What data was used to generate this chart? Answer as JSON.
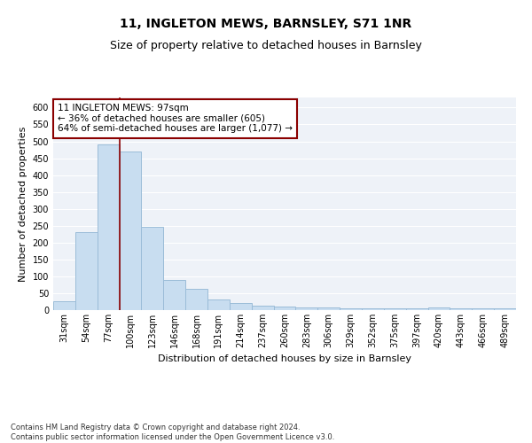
{
  "title": "11, INGLETON MEWS, BARNSLEY, S71 1NR",
  "subtitle": "Size of property relative to detached houses in Barnsley",
  "xlabel": "Distribution of detached houses by size in Barnsley",
  "ylabel": "Number of detached properties",
  "categories": [
    "31sqm",
    "54sqm",
    "77sqm",
    "100sqm",
    "123sqm",
    "146sqm",
    "168sqm",
    "191sqm",
    "214sqm",
    "237sqm",
    "260sqm",
    "283sqm",
    "306sqm",
    "329sqm",
    "352sqm",
    "375sqm",
    "397sqm",
    "420sqm",
    "443sqm",
    "466sqm",
    "489sqm"
  ],
  "values": [
    25,
    232,
    490,
    470,
    248,
    88,
    63,
    31,
    22,
    13,
    11,
    9,
    7,
    5,
    5,
    5,
    5,
    7,
    5,
    5,
    5
  ],
  "bar_color": "#c8ddf0",
  "bar_edge_color": "#9bbcd8",
  "vline_color": "#8b0000",
  "vline_x_index": 3,
  "annotation_text": "11 INGLETON MEWS: 97sqm\n← 36% of detached houses are smaller (605)\n64% of semi-detached houses are larger (1,077) →",
  "annotation_box_edgecolor": "#8b0000",
  "annotation_box_fill": "#ffffff",
  "ylim": [
    0,
    630
  ],
  "yticks": [
    0,
    50,
    100,
    150,
    200,
    250,
    300,
    350,
    400,
    450,
    500,
    550,
    600
  ],
  "bg_color": "#eef2f8",
  "grid_color": "#ffffff",
  "footer": "Contains HM Land Registry data © Crown copyright and database right 2024.\nContains public sector information licensed under the Open Government Licence v3.0.",
  "title_fontsize": 10,
  "subtitle_fontsize": 9,
  "xlabel_fontsize": 8,
  "ylabel_fontsize": 8,
  "tick_fontsize": 7,
  "annot_fontsize": 7.5,
  "footer_fontsize": 6
}
